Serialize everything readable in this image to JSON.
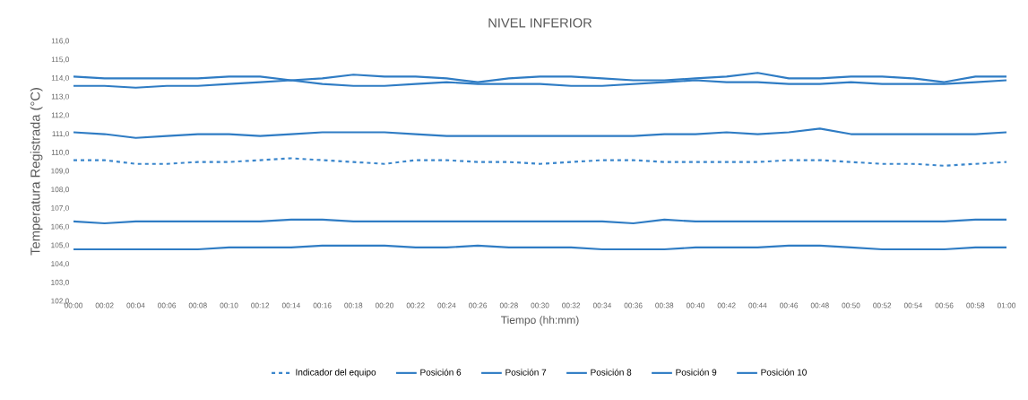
{
  "chart_data": {
    "type": "line",
    "title": "NIVEL INFERIOR",
    "xlabel": "Tiempo (hh:mm)",
    "ylabel": "Temperatura Registrada (°C)",
    "legend": "bottom",
    "x": [
      0,
      0.0333,
      0.0667,
      0.1,
      0.1333,
      0.1667,
      0.2,
      0.2333,
      0.2667,
      0.3,
      0.3333,
      0.3667,
      0.4,
      0.4333,
      0.4667,
      0.5,
      0.5333,
      0.5667,
      0.6,
      0.6333,
      0.6667,
      0.7,
      0.7333,
      0.7667,
      0.8,
      0.8333,
      0.8667,
      0.9,
      0.9333,
      0.9667,
      1
    ],
    "xlim": [
      0,
      1
    ],
    "xticks": [
      {
        "value": 0,
        "label": "00:00"
      },
      {
        "value": 0.0333,
        "label": "00:02"
      },
      {
        "value": 0.0667,
        "label": "00:04"
      },
      {
        "value": 0.1,
        "label": "00:06"
      },
      {
        "value": 0.1333,
        "label": "00:08"
      },
      {
        "value": 0.1667,
        "label": "00:10"
      },
      {
        "value": 0.2,
        "label": "00:12"
      },
      {
        "value": 0.2333,
        "label": "00:14"
      },
      {
        "value": 0.2667,
        "label": "00:16"
      },
      {
        "value": 0.3,
        "label": "00:18"
      },
      {
        "value": 0.3333,
        "label": "00:20"
      },
      {
        "value": 0.3667,
        "label": "00:22"
      },
      {
        "value": 0.4,
        "label": "00:24"
      },
      {
        "value": 0.4333,
        "label": "00:26"
      },
      {
        "value": 0.4667,
        "label": "00:28"
      },
      {
        "value": 0.5,
        "label": "00:30"
      },
      {
        "value": 0.5333,
        "label": "00:32"
      },
      {
        "value": 0.5667,
        "label": "00:34"
      },
      {
        "value": 0.6,
        "label": "00:36"
      },
      {
        "value": 0.6333,
        "label": "00:38"
      },
      {
        "value": 0.6667,
        "label": "00:40"
      },
      {
        "value": 0.7,
        "label": "00:42"
      },
      {
        "value": 0.7333,
        "label": "00:44"
      },
      {
        "value": 0.7667,
        "label": "00:46"
      },
      {
        "value": 0.8,
        "label": "00:48"
      },
      {
        "value": 0.8333,
        "label": "00:50"
      },
      {
        "value": 0.8667,
        "label": "00:52"
      },
      {
        "value": 0.9,
        "label": "00:54"
      },
      {
        "value": 0.9333,
        "label": "00:56"
      },
      {
        "value": 0.9667,
        "label": "00:58"
      },
      {
        "value": 1,
        "label": "01:00"
      }
    ],
    "ylim": [
      102,
      116
    ],
    "yticks": [
      {
        "value": 102,
        "label": "102,0"
      },
      {
        "value": 103,
        "label": "103,0"
      },
      {
        "value": 104,
        "label": "104,0"
      },
      {
        "value": 105,
        "label": "105,0"
      },
      {
        "value": 106,
        "label": "106,0"
      },
      {
        "value": 107,
        "label": "107,0"
      },
      {
        "value": 108,
        "label": "108,0"
      },
      {
        "value": 109,
        "label": "109,0"
      },
      {
        "value": 110,
        "label": "110,0"
      },
      {
        "value": 111,
        "label": "111,0"
      },
      {
        "value": 112,
        "label": "112,0"
      },
      {
        "value": 113,
        "label": "113,0"
      },
      {
        "value": 114,
        "label": "114,0"
      },
      {
        "value": 115,
        "label": "115,0"
      },
      {
        "value": 116,
        "label": "116,0"
      }
    ],
    "series": [
      {
        "name": "Indicador del equipo",
        "color": "#3a86cc",
        "line_style": "dashed",
        "values": [
          109.6,
          109.6,
          109.4,
          109.4,
          109.5,
          109.5,
          109.6,
          109.7,
          109.6,
          109.5,
          109.4,
          109.6,
          109.6,
          109.5,
          109.5,
          109.4,
          109.5,
          109.6,
          109.6,
          109.5,
          109.5,
          109.5,
          109.5,
          109.6,
          109.6,
          109.5,
          109.4,
          109.4,
          109.3,
          109.4,
          109.5
        ]
      },
      {
        "name": "Posición 6",
        "color": "#2f7cc4",
        "line_style": "solid",
        "values": [
          114.1,
          114.0,
          114.0,
          114.0,
          114.0,
          114.1,
          114.1,
          113.9,
          114.0,
          114.2,
          114.1,
          114.1,
          114.0,
          113.8,
          114.0,
          114.1,
          114.1,
          114.0,
          113.9,
          113.9,
          114.0,
          114.1,
          114.3,
          114.0,
          114.0,
          114.1,
          114.1,
          114.0,
          113.8,
          114.1,
          114.1
        ]
      },
      {
        "name": "Posición 7",
        "color": "#2f7cc4",
        "line_style": "solid",
        "values": [
          113.6,
          113.6,
          113.5,
          113.6,
          113.6,
          113.7,
          113.8,
          113.9,
          113.7,
          113.6,
          113.6,
          113.7,
          113.8,
          113.7,
          113.7,
          113.7,
          113.6,
          113.6,
          113.7,
          113.8,
          113.9,
          113.8,
          113.8,
          113.7,
          113.7,
          113.8,
          113.7,
          113.7,
          113.7,
          113.8,
          113.9
        ]
      },
      {
        "name": "Posición 8",
        "color": "#2f7cc4",
        "line_style": "solid",
        "values": [
          111.1,
          111.0,
          110.8,
          110.9,
          111.0,
          111.0,
          110.9,
          111.0,
          111.1,
          111.1,
          111.1,
          111.0,
          110.9,
          110.9,
          110.9,
          110.9,
          110.9,
          110.9,
          110.9,
          111.0,
          111.0,
          111.1,
          111.0,
          111.1,
          111.3,
          111.0,
          111.0,
          111.0,
          111.0,
          111.0,
          111.1
        ]
      },
      {
        "name": "Posición 9",
        "color": "#2f7cc4",
        "line_style": "solid",
        "values": [
          106.3,
          106.2,
          106.3,
          106.3,
          106.3,
          106.3,
          106.3,
          106.4,
          106.4,
          106.3,
          106.3,
          106.3,
          106.3,
          106.3,
          106.3,
          106.3,
          106.3,
          106.3,
          106.2,
          106.4,
          106.3,
          106.3,
          106.3,
          106.3,
          106.3,
          106.3,
          106.3,
          106.3,
          106.3,
          106.4,
          106.4
        ]
      },
      {
        "name": "Posición 10",
        "color": "#2f7cc4",
        "line_style": "solid",
        "values": [
          104.8,
          104.8,
          104.8,
          104.8,
          104.8,
          104.9,
          104.9,
          104.9,
          105.0,
          105.0,
          105.0,
          104.9,
          104.9,
          105.0,
          104.9,
          104.9,
          104.9,
          104.8,
          104.8,
          104.8,
          104.9,
          104.9,
          104.9,
          105.0,
          105.0,
          104.9,
          104.8,
          104.8,
          104.8,
          104.9,
          104.9
        ]
      }
    ]
  }
}
